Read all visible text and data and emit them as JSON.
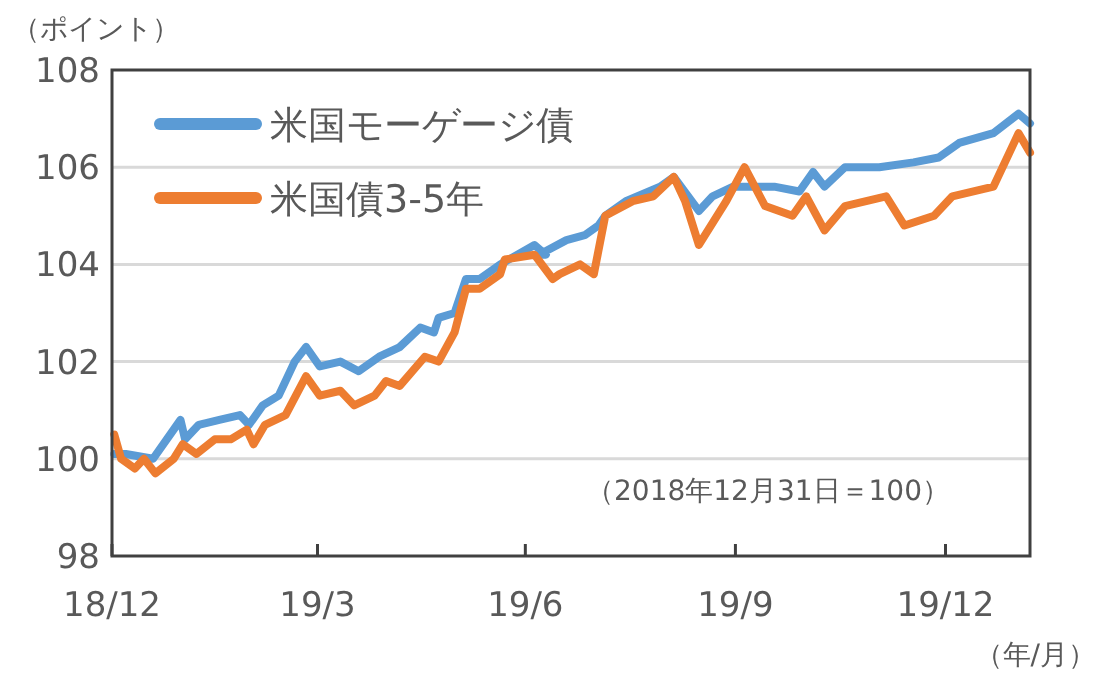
{
  "chart_data": {
    "type": "line",
    "ylabel": "（ポイント）",
    "xlabel": "（年/月）",
    "annotations": [
      "（2018年12月31日＝100）"
    ],
    "xlim": [
      "2018-12-31",
      "2020-02-06"
    ],
    "ylim": [
      98,
      108
    ],
    "yticks": [
      98,
      100,
      102,
      104,
      106,
      108
    ],
    "xticks": [
      {
        "value": "2018-12-31",
        "label": "18/12"
      },
      {
        "value": "2019-03-31",
        "label": "19/3"
      },
      {
        "value": "2019-06-30",
        "label": "19/6"
      },
      {
        "value": "2019-09-30",
        "label": "19/9"
      },
      {
        "value": "2019-12-31",
        "label": "19/12"
      }
    ],
    "grid": "y",
    "legend": "top left",
    "line_style": "solid",
    "marker": "none",
    "series": [
      {
        "name": "米国モーゲージ債",
        "color": "#5b9bd5",
        "x": [
          "2019-01-01",
          "2019-01-06",
          "2019-01-18",
          "2019-01-30",
          "2019-02-01",
          "2019-02-07",
          "2019-02-16",
          "2019-02-25",
          "2019-03-01",
          "2019-03-07",
          "2019-03-14",
          "2019-03-21",
          "2019-03-26",
          "2019-04-01",
          "2019-04-10",
          "2019-04-18",
          "2019-04-27",
          "2019-05-06",
          "2019-05-15",
          "2019-05-21",
          "2019-05-23",
          "2019-05-30",
          "2019-06-04",
          "2019-06-10",
          "2019-06-19",
          "2019-07-04",
          "2019-07-09",
          "2019-07-06",
          "2019-07-18",
          "2019-07-26",
          "2019-08-01",
          "2019-08-04",
          "2019-08-13",
          "2019-08-28",
          "2019-09-03",
          "2019-09-14",
          "2019-09-20",
          "2019-09-29",
          "2019-10-10",
          "2019-10-17",
          "2019-10-28",
          "2019-11-03",
          "2019-11-08",
          "2019-11-17",
          "2019-12-02",
          "2019-12-17",
          "2019-12-28",
          "2020-01-06",
          "2020-01-21",
          "2020-02-01",
          "2020-02-06"
        ],
        "values": [
          100.1,
          100.1,
          100.0,
          100.8,
          100.4,
          100.7,
          100.8,
          100.9,
          100.7,
          101.1,
          101.3,
          102.0,
          102.3,
          101.9,
          102.0,
          101.8,
          102.1,
          102.3,
          102.7,
          102.6,
          102.9,
          103.0,
          103.7,
          103.7,
          104.0,
          104.4,
          104.2,
          104.2,
          104.5,
          104.6,
          104.8,
          105.0,
          105.3,
          105.6,
          105.8,
          105.1,
          105.4,
          105.6,
          105.6,
          105.6,
          105.5,
          105.9,
          105.6,
          106.0,
          106.0,
          106.1,
          106.2,
          106.5,
          106.7,
          107.1,
          106.9
        ]
      },
      {
        "name": "米国債3-5年",
        "color": "#ed7d31",
        "x": [
          "2019-01-01",
          "2019-01-04",
          "2019-01-10",
          "2019-01-14",
          "2019-01-19",
          "2019-01-27",
          "2019-01-31",
          "2019-02-06",
          "2019-02-14",
          "2019-02-21",
          "2019-02-28",
          "2019-03-03",
          "2019-03-08",
          "2019-03-17",
          "2019-03-26",
          "2019-04-01",
          "2019-04-10",
          "2019-04-16",
          "2019-04-25",
          "2019-04-30",
          "2019-05-06",
          "2019-05-17",
          "2019-05-23",
          "2019-05-30",
          "2019-06-04",
          "2019-06-10",
          "2019-06-19",
          "2019-06-21",
          "2019-07-04",
          "2019-07-12",
          "2019-07-15",
          "2019-07-24",
          "2019-07-30",
          "2019-08-04",
          "2019-08-16",
          "2019-08-25",
          "2019-09-03",
          "2019-09-08",
          "2019-09-14",
          "2019-09-26",
          "2019-10-04",
          "2019-10-13",
          "2019-10-25",
          "2019-10-31",
          "2019-11-08",
          "2019-11-17",
          "2019-12-05",
          "2019-12-13",
          "2019-12-26",
          "2020-01-03",
          "2020-01-21",
          "2020-01-30",
          "2020-02-01",
          "2020-02-06"
        ],
        "values": [
          100.5,
          100.0,
          99.8,
          100.0,
          99.7,
          100.0,
          100.3,
          100.1,
          100.4,
          100.4,
          100.6,
          100.3,
          100.7,
          100.9,
          101.7,
          101.3,
          101.4,
          101.1,
          101.3,
          101.6,
          101.5,
          102.1,
          102.0,
          102.6,
          103.5,
          103.5,
          103.8,
          104.1,
          104.2,
          103.7,
          103.8,
          104.0,
          103.8,
          105.0,
          105.3,
          105.4,
          105.8,
          105.3,
          104.4,
          105.3,
          106.0,
          105.2,
          105.0,
          105.4,
          104.7,
          105.2,
          105.4,
          104.8,
          105.0,
          105.4,
          105.6,
          106.5,
          106.7,
          106.3
        ]
      }
    ]
  }
}
